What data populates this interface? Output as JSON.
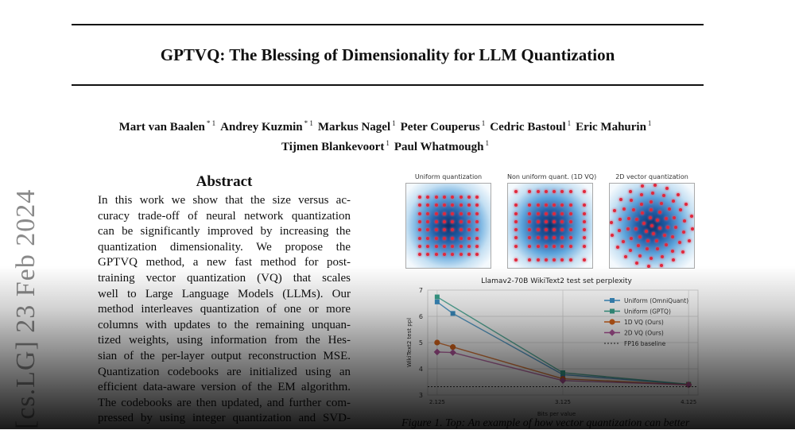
{
  "paper": {
    "title": "GPTVQ: The Blessing of Dimensionality for LLM Quantization",
    "authors_line1": [
      {
        "name": "Mart van Baalen",
        "mark": "* 1"
      },
      {
        "name": "Andrey Kuzmin",
        "mark": "* 1"
      },
      {
        "name": "Markus Nagel",
        "mark": "1"
      },
      {
        "name": "Peter Couperus",
        "mark": "1"
      },
      {
        "name": "Cedric Bastoul",
        "mark": "1"
      },
      {
        "name": "Eric Mahurin",
        "mark": "1"
      }
    ],
    "authors_line2": [
      {
        "name": "Tijmen Blankevoort",
        "mark": "1"
      },
      {
        "name": "Paul Whatmough",
        "mark": "1"
      }
    ],
    "arxiv_stamp": "[cs.LG]  23 Feb 2024",
    "abstract_title": "Abstract",
    "abstract_lines": [
      "In this work we show that the size versus ac-",
      "curacy trade-off of neural network quantization",
      "can be significantly improved by increasing the",
      "quantization dimensionality.  We propose the",
      "GPTVQ method, a new fast method for post-",
      "training vector quantization (VQ) that scales",
      "well to Large Language Models (LLMs).  Our",
      "method interleaves quantization of one or more",
      "columns with updates to the remaining unquan-",
      "tized weights, using information from the Hes-",
      "sian of the per-layer output reconstruction MSE.",
      "Quantization codebooks are initialized using an",
      "efficient data-aware version of the EM algorithm.",
      "The codebooks are then updated, and further com-",
      "pressed by using integer quantization and SVD-"
    ],
    "figure_caption": "Figure 1. Top: An example of how vector quantization can better"
  },
  "figure_panels": [
    {
      "title": "Uniform quantization",
      "kind": "uniform"
    },
    {
      "title": "Non uniform quant. (1D VQ)",
      "kind": "nonuniform"
    },
    {
      "title": "2D vector quantization",
      "kind": "vq2d"
    }
  ],
  "chart_data": {
    "type": "line",
    "title": "Llamav2-70B WikiText2 test set perplexity",
    "xlabel": "Bits per value",
    "ylabel": "WikiText2 test ppl",
    "xlim": [
      2.05,
      4.2
    ],
    "ylim": [
      3,
      7
    ],
    "xticks": [
      "2.125",
      "3.125",
      "4.125"
    ],
    "xtick_values": [
      2.125,
      3.125,
      4.125
    ],
    "yticks": [
      "3",
      "4",
      "5",
      "6",
      "7"
    ],
    "ytick_values": [
      3,
      4,
      5,
      6,
      7
    ],
    "grid": true,
    "legend_position": "top-right",
    "series": [
      {
        "name": "Uniform (OmniQuant)",
        "color": "#3b8fc4",
        "marker": "square",
        "x": [
          2.125,
          2.25,
          3.125,
          4.125
        ],
        "y": [
          6.55,
          6.11,
          3.78,
          3.4
        ]
      },
      {
        "name": "Uniform (GPTQ)",
        "color": "#3aa38e",
        "marker": "square",
        "x": [
          2.125,
          3.125,
          4.125
        ],
        "y": [
          6.74,
          3.85,
          3.41
        ]
      },
      {
        "name": "1D VQ (Ours)",
        "color": "#d9651b",
        "marker": "circle",
        "x": [
          2.125,
          2.25,
          3.125,
          4.125
        ],
        "y": [
          5.0,
          4.83,
          3.62,
          3.39
        ]
      },
      {
        "name": "2D VQ (Ours)",
        "color": "#b5569e",
        "marker": "diamond",
        "x": [
          2.125,
          2.25,
          3.125,
          4.125
        ],
        "y": [
          4.64,
          4.62,
          3.55,
          3.39
        ]
      },
      {
        "name": "FP16 baseline",
        "color": "#333333",
        "marker": "dashed",
        "y_const": 3.32
      }
    ]
  }
}
